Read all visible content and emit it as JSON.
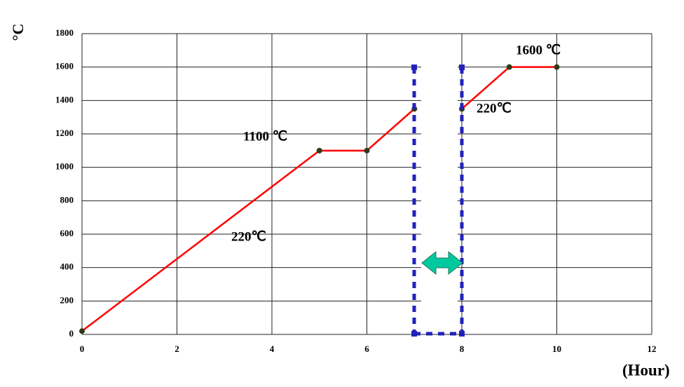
{
  "chart_data": {
    "type": "line",
    "x": [
      0,
      5,
      6,
      7,
      7.5,
      8,
      9,
      10
    ],
    "values": [
      20,
      1100,
      1100,
      1350,
      null,
      1350,
      1600,
      1600
    ],
    "color": "#ff0000",
    "marker_color": "#2f3a1a",
    "xlim": [
      0,
      12
    ],
    "xticks": [
      0,
      2,
      4,
      6,
      8,
      10,
      12
    ],
    "ylim": [
      0,
      1800
    ],
    "yticks": [
      0,
      200,
      400,
      600,
      800,
      1000,
      1200,
      1400,
      1600,
      1800
    ],
    "grid": true,
    "xlabel": "(Hour)",
    "ylabel": "°C",
    "annotations": [
      "1100 ℃",
      "220℃",
      "220℃",
      "1600 ℃"
    ]
  }
}
